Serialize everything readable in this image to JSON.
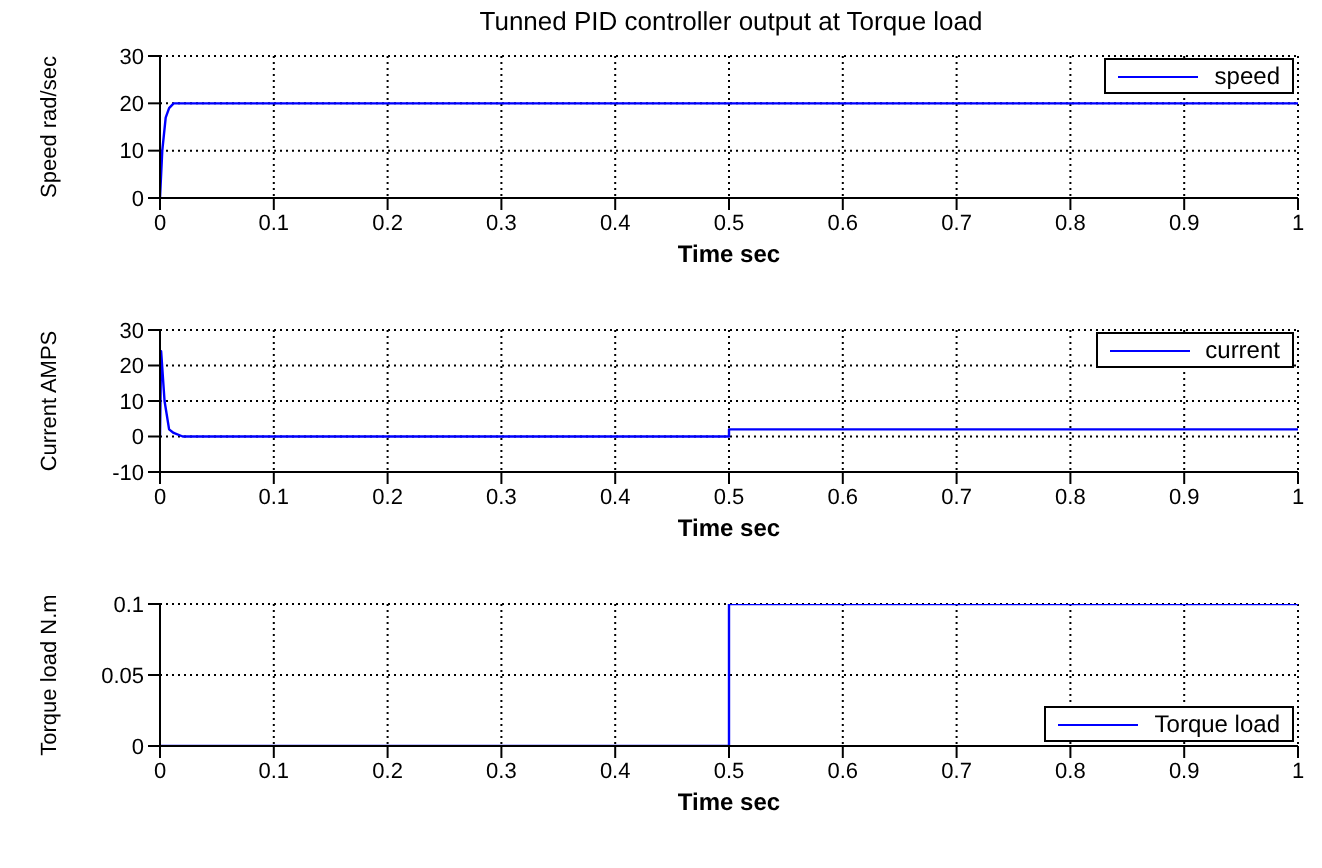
{
  "chart_data": [
    {
      "type": "line",
      "title": "Tunned PID controller output at Torque load",
      "xlabel": "Time sec",
      "ylabel": "Speed rad/sec",
      "xlim": [
        0,
        1
      ],
      "xticks": [
        0,
        0.1,
        0.2,
        0.3,
        0.4,
        0.5,
        0.6,
        0.7,
        0.8,
        0.9,
        1
      ],
      "ylim": [
        0,
        30
      ],
      "yticks": [
        0,
        10,
        20,
        30
      ],
      "grid": true,
      "legend": "top right",
      "series": [
        {
          "name": "speed",
          "color": "#0000ff",
          "x": [
            0,
            0.002,
            0.005,
            0.008,
            0.012,
            0.03,
            0.5,
            0.6,
            1
          ],
          "values": [
            0,
            10,
            17,
            19,
            20,
            20,
            20,
            20,
            20
          ]
        }
      ]
    },
    {
      "type": "line",
      "xlabel": "Time sec",
      "ylabel": "Current AMPS",
      "xlim": [
        0,
        1
      ],
      "xticks": [
        0,
        0.1,
        0.2,
        0.3,
        0.4,
        0.5,
        0.6,
        0.7,
        0.8,
        0.9,
        1
      ],
      "ylim": [
        -10,
        30
      ],
      "yticks": [
        -10,
        0,
        10,
        20,
        30
      ],
      "grid": true,
      "legend": "top right",
      "series": [
        {
          "name": "current",
          "color": "#0000ff",
          "x": [
            0,
            0.001,
            0.004,
            0.008,
            0.012,
            0.02,
            0.5,
            0.5,
            1
          ],
          "values": [
            0,
            24,
            10,
            2,
            1,
            0,
            0,
            2,
            2
          ]
        }
      ]
    },
    {
      "type": "line",
      "xlabel": "Time sec",
      "ylabel": "Torque load N.m",
      "xlim": [
        0,
        1
      ],
      "xticks": [
        0,
        0.1,
        0.2,
        0.3,
        0.4,
        0.5,
        0.6,
        0.7,
        0.8,
        0.9,
        1
      ],
      "ylim": [
        0,
        0.1
      ],
      "yticks": [
        0,
        0.05,
        0.1
      ],
      "grid": true,
      "legend": "bottom right",
      "series": [
        {
          "name": "Torque load",
          "color": "#0000ff",
          "x": [
            0,
            0.5,
            0.5,
            1
          ],
          "values": [
            0,
            0,
            0.1,
            0.1
          ]
        }
      ]
    }
  ]
}
